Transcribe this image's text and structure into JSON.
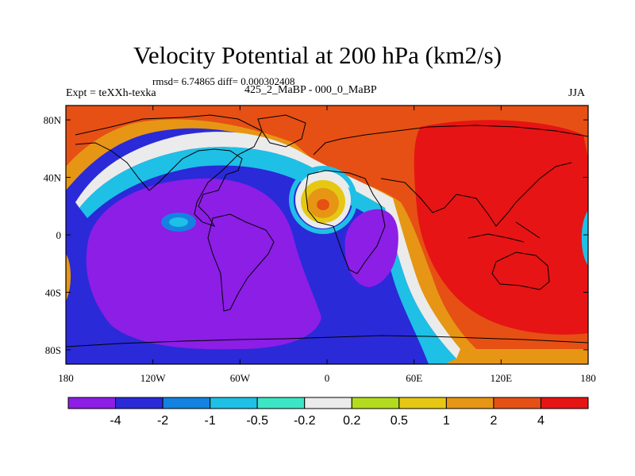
{
  "title": "Velocity Potential at 200 hPa (km2/s)",
  "stats_line": "rmsd= 6.74865 diff= 0.000302408",
  "left_label": "Expt = teXXh-texka",
  "center_label": "425_2_MaBP - 000_0_MaBP",
  "right_label": "JJA",
  "axes": {
    "lat_ticks": [
      {
        "value": 80,
        "label": "80N"
      },
      {
        "value": 40,
        "label": "40N"
      },
      {
        "value": 0,
        "label": "0"
      },
      {
        "value": -40,
        "label": "40S"
      },
      {
        "value": -80,
        "label": "80S"
      }
    ],
    "lon_ticks": [
      {
        "value": -180,
        "label": "180"
      },
      {
        "value": -120,
        "label": "120W"
      },
      {
        "value": -60,
        "label": "60W"
      },
      {
        "value": 0,
        "label": "0"
      },
      {
        "value": 60,
        "label": "60E"
      },
      {
        "value": 120,
        "label": "120E"
      },
      {
        "value": 180,
        "label": "180"
      }
    ],
    "lon_range": [
      -180,
      180
    ],
    "lat_range": [
      -90,
      90
    ]
  },
  "colorbar": {
    "levels": [
      "-4",
      "-2",
      "-1",
      "-0.5",
      "-0.2",
      "0.2",
      "0.5",
      "1",
      "2",
      "4"
    ],
    "colors": [
      "#8c1ee6",
      "#2a2ad8",
      "#1482e0",
      "#1ec0e6",
      "#3ce6c4",
      "#ebebeb",
      "#b4dc1e",
      "#e6c814",
      "#e69614",
      "#e65014",
      "#e61414"
    ]
  },
  "map_colors": {
    "purple": "#8c1ee6",
    "blue": "#2a2ad8",
    "mid_blue": "#1482e0",
    "cyan": "#1ec0e6",
    "teal": "#3ce6c4",
    "white": "#ebebeb",
    "yellow_green": "#b4dc1e",
    "yellow": "#e6c814",
    "orange": "#e69614",
    "dark_orange": "#e65014",
    "red": "#e61414"
  }
}
